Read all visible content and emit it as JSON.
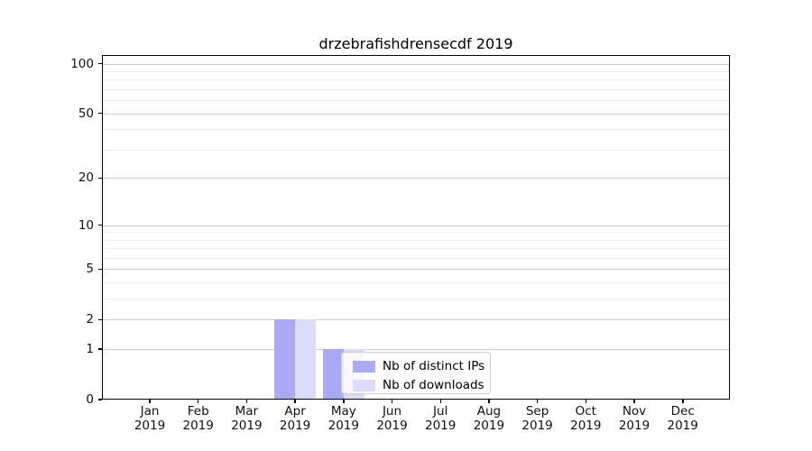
{
  "title": "drzebrafishdrensecdf 2019",
  "chart_data": {
    "type": "bar",
    "title": "drzebrafishdrensecdf 2019",
    "x_axis": {
      "categories": [
        "Jan",
        "Feb",
        "Mar",
        "Apr",
        "May",
        "Jun",
        "Jul",
        "Aug",
        "Sep",
        "Oct",
        "Nov",
        "Dec"
      ],
      "year_label": "2019"
    },
    "y_axis": {
      "scale": "log1p",
      "major_ticks": [
        0,
        1,
        2,
        5,
        10,
        20,
        50,
        100
      ],
      "minor_ticks": [
        3,
        4,
        6,
        7,
        8,
        9,
        30,
        40,
        60,
        70,
        80,
        90
      ],
      "range": [
        0,
        113
      ]
    },
    "series": [
      {
        "name": "Nb of distinct IPs",
        "color": "#a9a9f4",
        "values": [
          0,
          0,
          0,
          2,
          1,
          0,
          0,
          0,
          0,
          0,
          0,
          0
        ]
      },
      {
        "name": "Nb of downloads",
        "color": "#dbdbfa",
        "values": [
          0,
          0,
          0,
          2,
          1,
          0,
          0,
          0,
          0,
          0,
          0,
          0
        ]
      }
    ],
    "grid": "horizontal",
    "legend": {
      "position": "inside-bottom-center",
      "items": [
        "Nb of distinct IPs",
        "Nb of downloads"
      ]
    },
    "colors": {
      "major_grid": "#cdcdcd",
      "minor_grid": "#ededed",
      "axis": "#000000",
      "tick_label": "#111111",
      "background": "#ffffff"
    }
  }
}
